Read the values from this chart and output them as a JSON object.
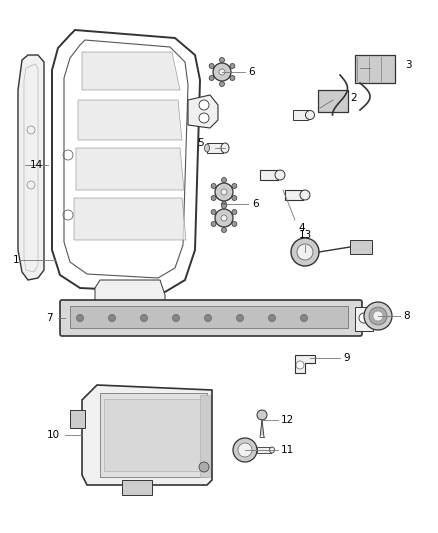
{
  "bg_color": "#ffffff",
  "line_color": "#000000",
  "label_color": "#000000",
  "label_fontsize": 7.5,
  "lw_main": 1.0,
  "lw_thin": 0.5
}
